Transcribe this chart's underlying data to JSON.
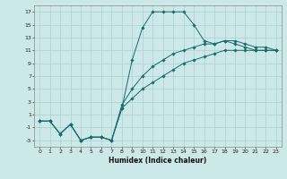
{
  "xlabel": "Humidex (Indice chaleur)",
  "bg_color": "#cce8e8",
  "grid_color": "#aacfcf",
  "line_color": "#1a6b6b",
  "xlim": [
    -0.5,
    23.5
  ],
  "ylim": [
    -4,
    18
  ],
  "xticks": [
    0,
    1,
    2,
    3,
    4,
    5,
    6,
    7,
    8,
    9,
    10,
    11,
    12,
    13,
    14,
    15,
    16,
    17,
    18,
    19,
    20,
    21,
    22,
    23
  ],
  "yticks": [
    -3,
    -1,
    1,
    3,
    5,
    7,
    9,
    11,
    13,
    15,
    17
  ],
  "series": [
    {
      "x": [
        0,
        1,
        2,
        3,
        4,
        5,
        6,
        7,
        8,
        9,
        10,
        11,
        12,
        13,
        14,
        15,
        16,
        17,
        18,
        19,
        20,
        21,
        22,
        23
      ],
      "y": [
        0,
        0,
        -2,
        -0.5,
        -3,
        -2.5,
        -2.5,
        -3,
        2,
        9.5,
        14.5,
        17,
        17,
        17,
        17,
        15,
        12.5,
        12,
        12.5,
        12,
        11.5,
        11,
        11,
        11
      ]
    },
    {
      "x": [
        0,
        1,
        2,
        3,
        4,
        5,
        6,
        7,
        8,
        9,
        10,
        11,
        12,
        13,
        14,
        15,
        16,
        17,
        18,
        19,
        20,
        21,
        22,
        23
      ],
      "y": [
        0,
        0,
        -2,
        -0.5,
        -3,
        -2.5,
        -2.5,
        -3,
        2.5,
        5,
        7,
        8.5,
        9.5,
        10.5,
        11,
        11.5,
        12,
        12,
        12.5,
        12.5,
        12,
        11.5,
        11.5,
        11
      ]
    },
    {
      "x": [
        0,
        1,
        2,
        3,
        4,
        5,
        6,
        7,
        8,
        9,
        10,
        11,
        12,
        13,
        14,
        15,
        16,
        17,
        18,
        19,
        20,
        21,
        22,
        23
      ],
      "y": [
        0,
        0,
        -2,
        -0.5,
        -3,
        -2.5,
        -2.5,
        -3,
        2,
        3.5,
        5,
        6,
        7,
        8,
        9,
        9.5,
        10,
        10.5,
        11,
        11,
        11,
        11,
        11,
        11
      ]
    }
  ]
}
